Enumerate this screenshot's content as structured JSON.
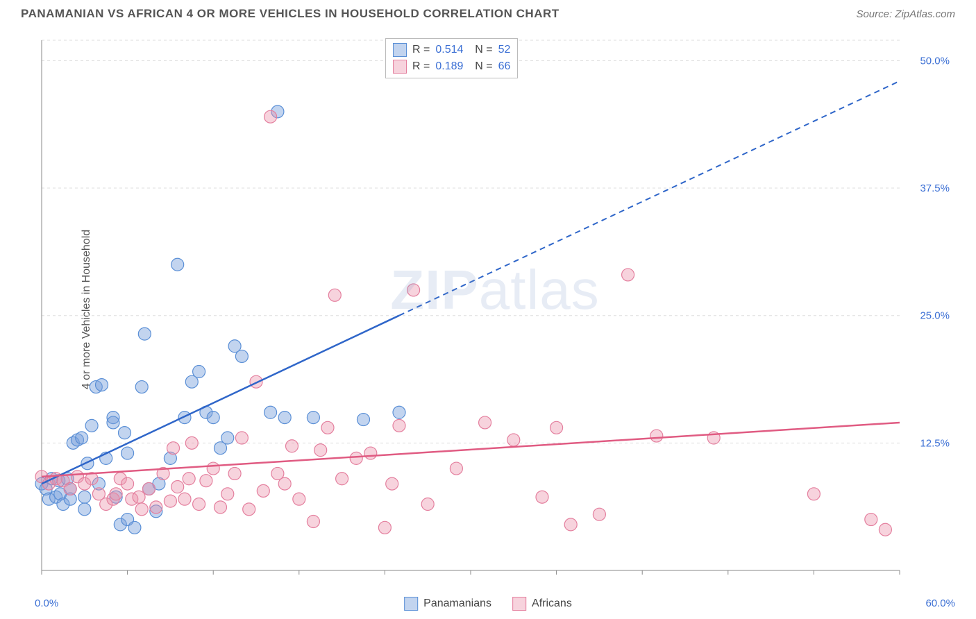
{
  "title": "PANAMANIAN VS AFRICAN 4 OR MORE VEHICLES IN HOUSEHOLD CORRELATION CHART",
  "source": "Source: ZipAtlas.com",
  "ylabel": "4 or more Vehicles in Household",
  "watermark": {
    "zip": "ZIP",
    "atlas": "atlas"
  },
  "chart": {
    "type": "scatter",
    "xlim": [
      0,
      60
    ],
    "ylim": [
      0,
      52
    ],
    "x_axis_min_label": "0.0%",
    "x_axis_max_label": "60.0%",
    "y_ticks": [
      12.5,
      25.0,
      37.5,
      50.0
    ],
    "y_tick_labels": [
      "12.5%",
      "25.0%",
      "37.5%",
      "50.0%"
    ],
    "grid_color": "#dddddd",
    "axis_color": "#888888",
    "background": "#ffffff",
    "series": [
      {
        "name": "Panamanians",
        "fill": "rgba(120,160,220,0.45)",
        "stroke": "#5a8fd6",
        "trend_color": "#2f66c9",
        "R": "0.514",
        "N": "52",
        "trend": {
          "x1": 0,
          "y1": 8.5,
          "x2": 25,
          "y2": 25,
          "ext_x2": 60,
          "ext_y2": 48
        },
        "points": [
          [
            0,
            8.5
          ],
          [
            0.3,
            8
          ],
          [
            0.5,
            7
          ],
          [
            0.7,
            9
          ],
          [
            1,
            7.2
          ],
          [
            1.2,
            8.8
          ],
          [
            1.3,
            7.5
          ],
          [
            1.5,
            6.5
          ],
          [
            1.8,
            9
          ],
          [
            2,
            8
          ],
          [
            2,
            7
          ],
          [
            2.2,
            12.5
          ],
          [
            2.5,
            12.8
          ],
          [
            2.8,
            13
          ],
          [
            3,
            7.2
          ],
          [
            3,
            6
          ],
          [
            3.2,
            10.5
          ],
          [
            3.5,
            14.2
          ],
          [
            3.8,
            18
          ],
          [
            4,
            8.5
          ],
          [
            4.2,
            18.2
          ],
          [
            4.5,
            11
          ],
          [
            5,
            15
          ],
          [
            5,
            14.5
          ],
          [
            5.2,
            7.2
          ],
          [
            5.5,
            4.5
          ],
          [
            5.8,
            13.5
          ],
          [
            6,
            5
          ],
          [
            6,
            11.5
          ],
          [
            6.5,
            4.2
          ],
          [
            7,
            18
          ],
          [
            7.2,
            23.2
          ],
          [
            7.5,
            8
          ],
          [
            8,
            5.8
          ],
          [
            8.2,
            8.5
          ],
          [
            9,
            11
          ],
          [
            9.5,
            30
          ],
          [
            10,
            15
          ],
          [
            10.5,
            18.5
          ],
          [
            11,
            19.5
          ],
          [
            11.5,
            15.5
          ],
          [
            12,
            15
          ],
          [
            12.5,
            12
          ],
          [
            13,
            13
          ],
          [
            13.5,
            22
          ],
          [
            14,
            21
          ],
          [
            16,
            15.5
          ],
          [
            16.5,
            45
          ],
          [
            17,
            15
          ],
          [
            19,
            15
          ],
          [
            22.5,
            14.8
          ],
          [
            25,
            15.5
          ]
        ]
      },
      {
        "name": "Africans",
        "fill": "rgba(235,145,170,0.40)",
        "stroke": "#e47f9e",
        "trend_color": "#e05b82",
        "R": "0.189",
        "N": "66",
        "trend": {
          "x1": 0,
          "y1": 9.2,
          "x2": 60,
          "y2": 14.5
        },
        "points": [
          [
            0,
            9.2
          ],
          [
            0.5,
            8.5
          ],
          [
            1,
            9
          ],
          [
            1.5,
            8.8
          ],
          [
            2,
            8
          ],
          [
            2.5,
            9.2
          ],
          [
            3,
            8.5
          ],
          [
            3.5,
            9
          ],
          [
            4,
            7.5
          ],
          [
            4.5,
            6.5
          ],
          [
            5,
            7
          ],
          [
            5.2,
            7.5
          ],
          [
            5.5,
            9
          ],
          [
            6,
            8.5
          ],
          [
            6.3,
            7
          ],
          [
            6.8,
            7.2
          ],
          [
            7,
            6
          ],
          [
            7.5,
            8
          ],
          [
            8,
            6.2
          ],
          [
            8.5,
            9.5
          ],
          [
            9,
            6.8
          ],
          [
            9.2,
            12
          ],
          [
            9.5,
            8.2
          ],
          [
            10,
            7
          ],
          [
            10.3,
            9
          ],
          [
            10.5,
            12.5
          ],
          [
            11,
            6.5
          ],
          [
            11.5,
            8.8
          ],
          [
            12,
            10
          ],
          [
            12.5,
            6.2
          ],
          [
            13,
            7.5
          ],
          [
            13.5,
            9.5
          ],
          [
            14,
            13
          ],
          [
            14.5,
            6
          ],
          [
            15,
            18.5
          ],
          [
            15.5,
            7.8
          ],
          [
            16,
            44.5
          ],
          [
            16.5,
            9.5
          ],
          [
            17,
            8.5
          ],
          [
            17.5,
            12.2
          ],
          [
            18,
            7
          ],
          [
            19,
            4.8
          ],
          [
            19.5,
            11.8
          ],
          [
            20,
            14
          ],
          [
            20.5,
            27
          ],
          [
            21,
            9
          ],
          [
            22,
            11
          ],
          [
            23,
            11.5
          ],
          [
            24,
            4.2
          ],
          [
            24.5,
            8.5
          ],
          [
            25,
            14.2
          ],
          [
            26,
            27.5
          ],
          [
            27,
            6.5
          ],
          [
            29,
            10
          ],
          [
            31,
            14.5
          ],
          [
            33,
            12.8
          ],
          [
            35,
            7.2
          ],
          [
            36,
            14
          ],
          [
            37,
            4.5
          ],
          [
            39,
            5.5
          ],
          [
            41,
            29
          ],
          [
            43,
            13.2
          ],
          [
            47,
            13
          ],
          [
            54,
            7.5
          ],
          [
            58,
            5
          ],
          [
            59,
            4
          ]
        ]
      }
    ]
  },
  "legend_bottom": [
    "Panamanians",
    "Africans"
  ]
}
